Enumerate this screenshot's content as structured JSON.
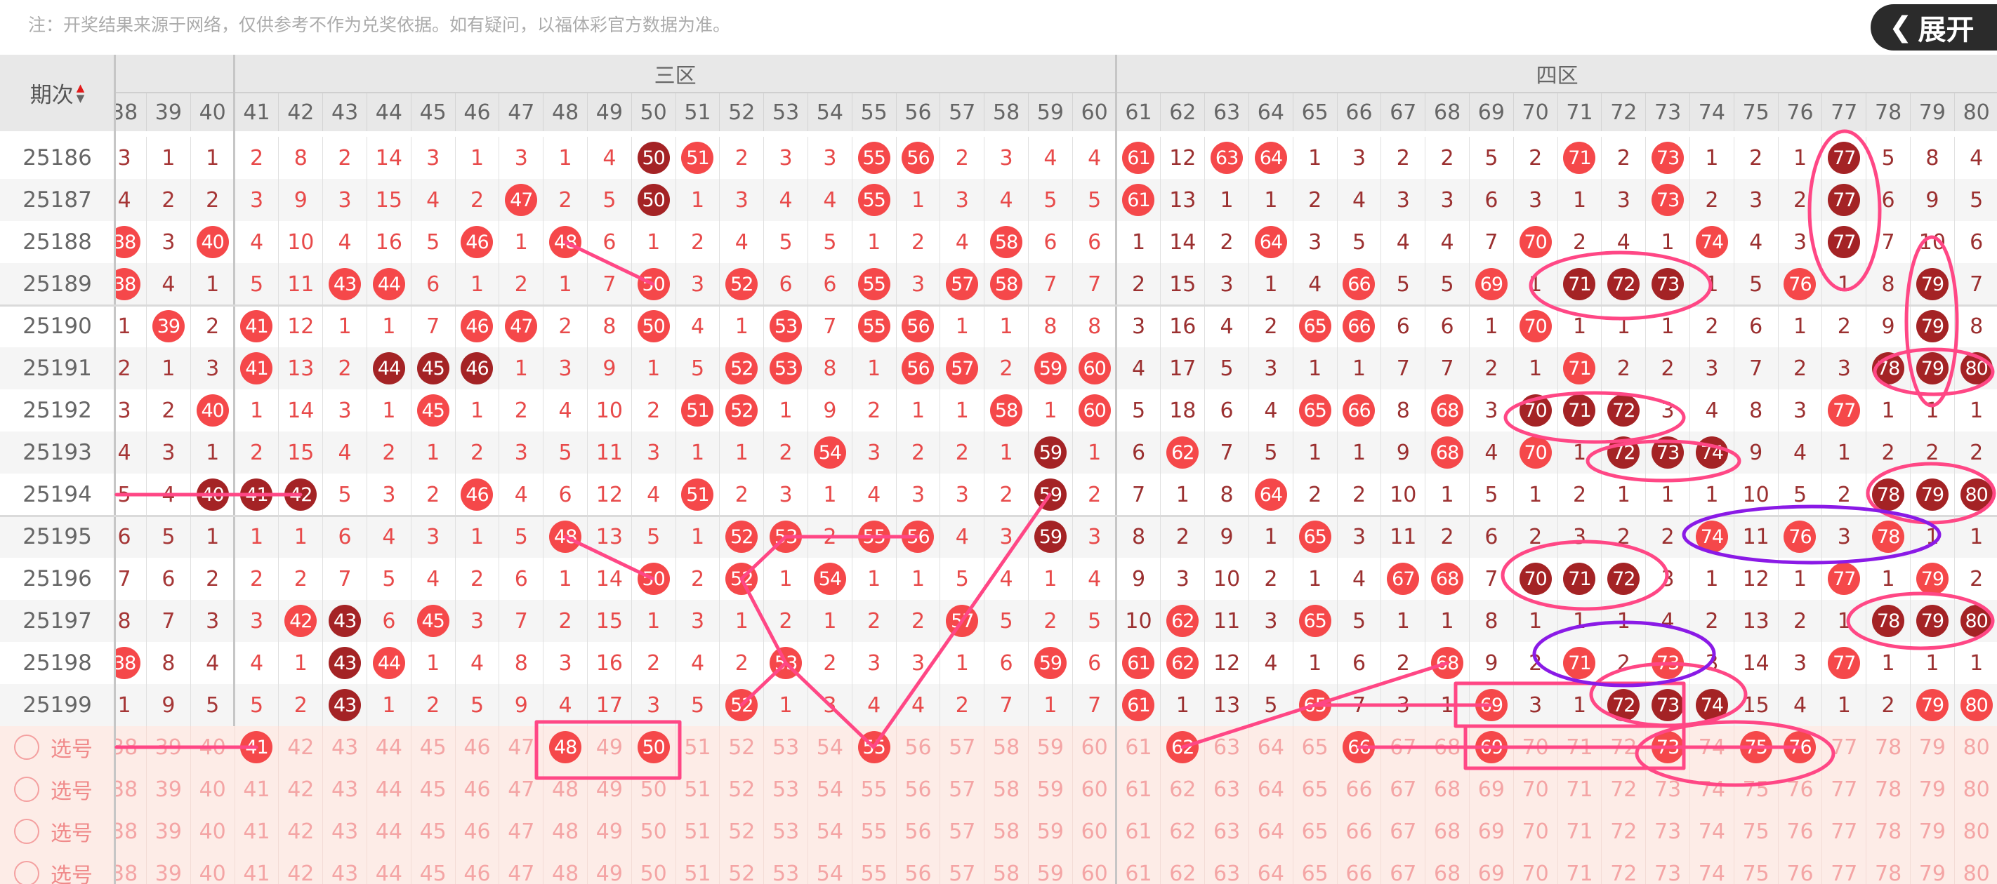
{
  "note": "注：开奖结果来源于网络，仅供参考不作为兑奖依据。如有疑问，以福体彩官方数据为准。",
  "header": {
    "period_label": "期次",
    "sort_icon": "sort-up-down-icon"
  },
  "zones": [
    {
      "label": "",
      "from": 38,
      "to": 40
    },
    {
      "label": "三区",
      "from": 41,
      "to": 60
    },
    {
      "label": "四区",
      "from": 61,
      "to": 80
    }
  ],
  "columns": [
    38,
    39,
    40,
    41,
    42,
    43,
    44,
    45,
    46,
    47,
    48,
    49,
    50,
    51,
    52,
    53,
    54,
    55,
    56,
    57,
    58,
    59,
    60,
    61,
    62,
    63,
    64,
    65,
    66,
    67,
    68,
    69,
    70,
    71,
    72,
    73,
    74,
    75,
    76,
    77,
    78,
    79,
    80
  ],
  "colors": {
    "hit": "#f5484a",
    "repeat_hit": "#a42325",
    "annotation_pink": "#ff4785",
    "annotation_purple": "#8a1ae6"
  },
  "rows": [
    {
      "period": "25186",
      "cells": [
        3,
        1,
        1,
        2,
        8,
        2,
        14,
        3,
        1,
        3,
        1,
        4,
        50,
        51,
        2,
        3,
        3,
        55,
        56,
        2,
        3,
        4,
        4,
        61,
        12,
        63,
        64,
        1,
        3,
        2,
        2,
        5,
        2,
        71,
        2,
        73,
        1,
        2,
        1,
        77,
        5,
        8,
        4
      ],
      "red": [
        51,
        55,
        56,
        61,
        63,
        64,
        71,
        73
      ],
      "dark": [
        50,
        77
      ]
    },
    {
      "period": "25187",
      "cells": [
        4,
        2,
        2,
        3,
        9,
        3,
        15,
        4,
        2,
        47,
        2,
        5,
        50,
        1,
        3,
        4,
        4,
        55,
        1,
        3,
        4,
        5,
        5,
        61,
        13,
        1,
        1,
        2,
        4,
        3,
        3,
        6,
        3,
        1,
        3,
        73,
        2,
        3,
        2,
        77,
        6,
        9,
        5
      ],
      "red": [
        47,
        55,
        61,
        73
      ],
      "dark": [
        50,
        77
      ]
    },
    {
      "period": "25188",
      "cells": [
        38,
        3,
        40,
        4,
        10,
        4,
        16,
        5,
        46,
        1,
        48,
        6,
        1,
        2,
        4,
        5,
        5,
        1,
        2,
        4,
        58,
        6,
        6,
        1,
        14,
        2,
        64,
        3,
        5,
        4,
        4,
        7,
        70,
        2,
        4,
        1,
        74,
        4,
        3,
        77,
        7,
        10,
        6
      ],
      "red": [
        38,
        40,
        46,
        48,
        58,
        64,
        70,
        74
      ],
      "dark": [
        77
      ]
    },
    {
      "period": "25189",
      "cells": [
        38,
        4,
        1,
        5,
        11,
        43,
        44,
        6,
        1,
        2,
        1,
        7,
        50,
        3,
        52,
        6,
        6,
        55,
        3,
        57,
        58,
        7,
        7,
        2,
        15,
        3,
        1,
        4,
        66,
        5,
        5,
        69,
        1,
        71,
        72,
        73,
        1,
        5,
        76,
        1,
        8,
        79,
        7
      ],
      "red": [
        38,
        43,
        44,
        50,
        52,
        55,
        57,
        58,
        66,
        69,
        76
      ],
      "dark": [
        71,
        72,
        73,
        79
      ]
    },
    {
      "period": "25190",
      "cells": [
        1,
        39,
        2,
        41,
        12,
        1,
        1,
        7,
        46,
        47,
        2,
        8,
        50,
        4,
        1,
        53,
        7,
        55,
        56,
        1,
        1,
        8,
        8,
        3,
        16,
        4,
        2,
        65,
        66,
        6,
        6,
        1,
        70,
        1,
        1,
        1,
        2,
        6,
        1,
        2,
        9,
        79,
        8
      ],
      "red": [
        39,
        41,
        46,
        47,
        50,
        53,
        55,
        56,
        65,
        66,
        70
      ],
      "dark": [
        79
      ]
    },
    {
      "period": "25191",
      "cells": [
        2,
        1,
        3,
        41,
        13,
        2,
        44,
        45,
        46,
        1,
        3,
        9,
        1,
        5,
        52,
        53,
        8,
        1,
        56,
        57,
        2,
        59,
        60,
        4,
        17,
        5,
        3,
        1,
        1,
        7,
        7,
        2,
        1,
        71,
        2,
        2,
        3,
        7,
        2,
        3,
        78,
        79,
        80
      ],
      "red": [
        41,
        52,
        53,
        56,
        57,
        59,
        60,
        71
      ],
      "dark": [
        44,
        45,
        46,
        78,
        79,
        80
      ]
    },
    {
      "period": "25192",
      "cells": [
        3,
        2,
        40,
        1,
        14,
        3,
        1,
        45,
        1,
        2,
        4,
        10,
        2,
        51,
        52,
        1,
        9,
        2,
        1,
        1,
        58,
        1,
        60,
        5,
        18,
        6,
        4,
        65,
        66,
        8,
        68,
        3,
        70,
        71,
        72,
        3,
        4,
        8,
        3,
        77,
        1,
        1,
        1
      ],
      "red": [
        40,
        45,
        51,
        52,
        58,
        60,
        65,
        66,
        68,
        77
      ],
      "dark": [
        70,
        71,
        72
      ]
    },
    {
      "period": "25193",
      "cells": [
        4,
        3,
        1,
        2,
        15,
        4,
        2,
        1,
        2,
        3,
        5,
        11,
        3,
        1,
        1,
        2,
        54,
        3,
        2,
        2,
        1,
        59,
        1,
        6,
        62,
        7,
        5,
        1,
        1,
        9,
        68,
        4,
        70,
        1,
        72,
        73,
        74,
        9,
        4,
        1,
        2,
        2,
        2
      ],
      "red": [
        54,
        62,
        68,
        70
      ],
      "dark": [
        59,
        72,
        73,
        74
      ]
    },
    {
      "period": "25194",
      "cells": [
        5,
        4,
        40,
        41,
        42,
        5,
        3,
        2,
        46,
        4,
        6,
        12,
        4,
        51,
        2,
        3,
        1,
        4,
        3,
        3,
        2,
        59,
        2,
        7,
        1,
        8,
        64,
        2,
        2,
        10,
        1,
        5,
        1,
        2,
        1,
        1,
        1,
        10,
        5,
        2,
        78,
        79,
        80
      ],
      "red": [
        46,
        51,
        64
      ],
      "dark": [
        40,
        41,
        42,
        59,
        78,
        79,
        80
      ]
    },
    {
      "period": "25195",
      "cells": [
        6,
        5,
        1,
        1,
        1,
        6,
        4,
        3,
        1,
        5,
        48,
        13,
        5,
        1,
        52,
        53,
        2,
        55,
        56,
        4,
        3,
        59,
        3,
        8,
        2,
        9,
        1,
        65,
        3,
        11,
        2,
        6,
        2,
        3,
        2,
        2,
        74,
        11,
        76,
        3,
        78,
        1,
        1
      ],
      "red": [
        48,
        52,
        53,
        55,
        56,
        65,
        74,
        76,
        78
      ],
      "dark": [
        59
      ]
    },
    {
      "period": "25196",
      "cells": [
        7,
        6,
        2,
        2,
        2,
        7,
        5,
        4,
        2,
        6,
        1,
        14,
        50,
        2,
        52,
        1,
        54,
        1,
        1,
        5,
        4,
        1,
        4,
        9,
        3,
        10,
        2,
        1,
        4,
        67,
        68,
        7,
        70,
        71,
        72,
        3,
        1,
        12,
        1,
        77,
        1,
        79,
        2
      ],
      "red": [
        50,
        52,
        54,
        67,
        68,
        77,
        79
      ],
      "dark": [
        70,
        71,
        72
      ]
    },
    {
      "period": "25197",
      "cells": [
        8,
        7,
        3,
        3,
        42,
        43,
        6,
        45,
        3,
        7,
        2,
        15,
        1,
        3,
        1,
        2,
        1,
        2,
        2,
        57,
        5,
        2,
        5,
        10,
        62,
        11,
        3,
        65,
        5,
        1,
        1,
        8,
        1,
        1,
        1,
        4,
        2,
        13,
        2,
        1,
        78,
        79,
        80
      ],
      "red": [
        42,
        45,
        57,
        62,
        65
      ],
      "dark": [
        43,
        78,
        79,
        80
      ]
    },
    {
      "period": "25198",
      "cells": [
        38,
        8,
        4,
        4,
        1,
        43,
        44,
        1,
        4,
        8,
        3,
        16,
        2,
        4,
        2,
        53,
        2,
        3,
        3,
        1,
        6,
        59,
        6,
        61,
        62,
        12,
        4,
        1,
        6,
        2,
        68,
        9,
        2,
        71,
        2,
        73,
        3,
        14,
        3,
        77,
        1,
        1,
        1
      ],
      "red": [
        38,
        44,
        53,
        59,
        61,
        62,
        68,
        71,
        73,
        77
      ],
      "dark": [
        43
      ]
    },
    {
      "period": "25199",
      "cells": [
        1,
        9,
        5,
        5,
        2,
        43,
        1,
        2,
        5,
        9,
        4,
        17,
        3,
        5,
        52,
        1,
        3,
        4,
        4,
        2,
        7,
        1,
        7,
        61,
        1,
        13,
        5,
        65,
        7,
        3,
        1,
        69,
        3,
        1,
        72,
        73,
        74,
        15,
        4,
        1,
        2,
        79,
        80
      ],
      "red": [
        52,
        61,
        65,
        69,
        79,
        80
      ],
      "dark": [
        43,
        72,
        73,
        74
      ]
    }
  ],
  "pick_rows": [
    {
      "label": "选号",
      "selected": [
        41,
        48,
        50,
        55,
        62,
        66,
        69,
        73,
        75,
        76
      ]
    },
    {
      "label": "选号",
      "selected": []
    },
    {
      "label": "选号",
      "selected": []
    },
    {
      "label": "选号",
      "selected": []
    }
  ],
  "expand_button": {
    "label": "展开",
    "icon": "chevron-left-icon"
  }
}
